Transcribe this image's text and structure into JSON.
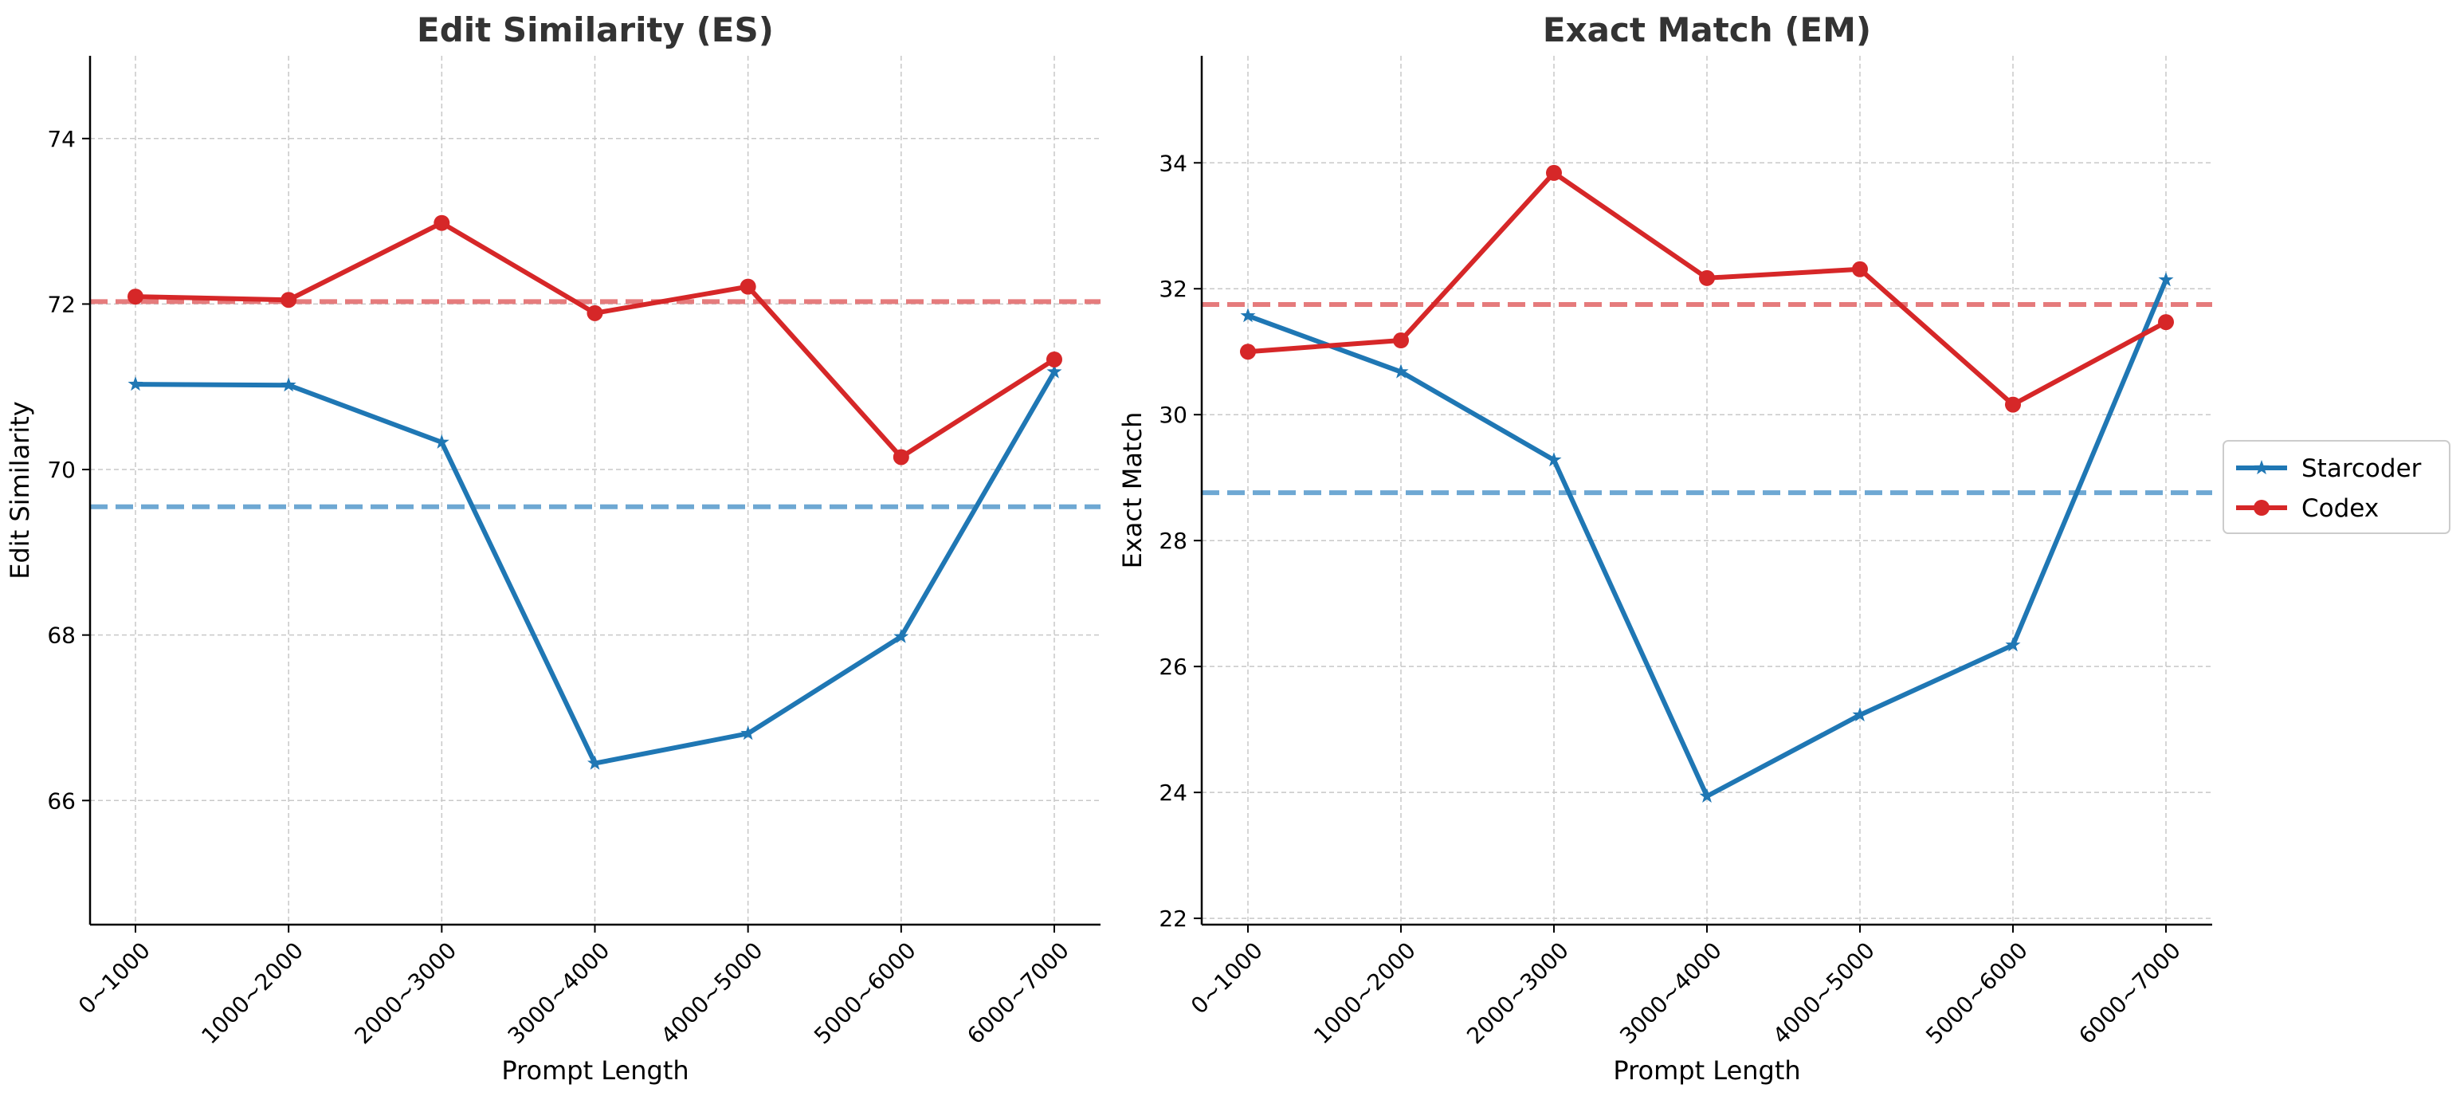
{
  "colors": {
    "starcoder": "#1f77b4",
    "codex": "#d62728",
    "starcoder_avg": "#6ea8d3",
    "codex_avg": "#e57b7c",
    "grid": "#c8c8c8",
    "title": "#333333"
  },
  "legend": {
    "placement": "right",
    "items": [
      {
        "label": "Starcoder",
        "marker": "star"
      },
      {
        "label": "Codex",
        "marker": "circle"
      }
    ]
  },
  "chart_data": [
    {
      "type": "line",
      "title": "Edit Similarity (ES)",
      "xlabel": "Prompt Length",
      "ylabel": "Edit Similarity",
      "categories": [
        "0~1000",
        "1000~2000",
        "2000~3000",
        "3000~4000",
        "4000~5000",
        "5000~6000",
        "6000~7000"
      ],
      "ylim": [
        64.5,
        75
      ],
      "yticks": [
        66,
        68,
        70,
        72,
        74
      ],
      "grid": true,
      "series": [
        {
          "name": "Starcoder",
          "marker": "star",
          "values": [
            71.03,
            71.02,
            70.33,
            66.45,
            66.81,
            67.98,
            71.18
          ]
        },
        {
          "name": "Codex",
          "marker": "circle",
          "values": [
            72.09,
            72.05,
            72.98,
            71.89,
            72.21,
            70.15,
            71.33
          ]
        }
      ],
      "reference_lines": [
        {
          "series": "Starcoder",
          "style": "dashed",
          "value": 69.55
        },
        {
          "series": "Codex",
          "style": "dashed",
          "value": 72.03
        }
      ]
    },
    {
      "type": "line",
      "title": "Exact Match (EM)",
      "xlabel": "Prompt Length",
      "ylabel": "Exact Match",
      "categories": [
        "0~1000",
        "1000~2000",
        "2000~3000",
        "3000~4000",
        "4000~5000",
        "5000~6000",
        "6000~7000"
      ],
      "ylim": [
        21.9,
        35.7
      ],
      "yticks": [
        22,
        24,
        26,
        28,
        30,
        32,
        34
      ],
      "grid": true,
      "series": [
        {
          "name": "Starcoder",
          "marker": "star",
          "values": [
            31.57,
            30.68,
            29.28,
            23.94,
            25.23,
            26.34,
            32.14
          ]
        },
        {
          "name": "Codex",
          "marker": "circle",
          "values": [
            31.0,
            31.18,
            33.84,
            32.17,
            32.31,
            30.16,
            31.47
          ]
        }
      ],
      "reference_lines": [
        {
          "series": "Starcoder",
          "style": "dashed",
          "value": 28.76
        },
        {
          "series": "Codex",
          "style": "dashed",
          "value": 31.75
        }
      ]
    }
  ]
}
